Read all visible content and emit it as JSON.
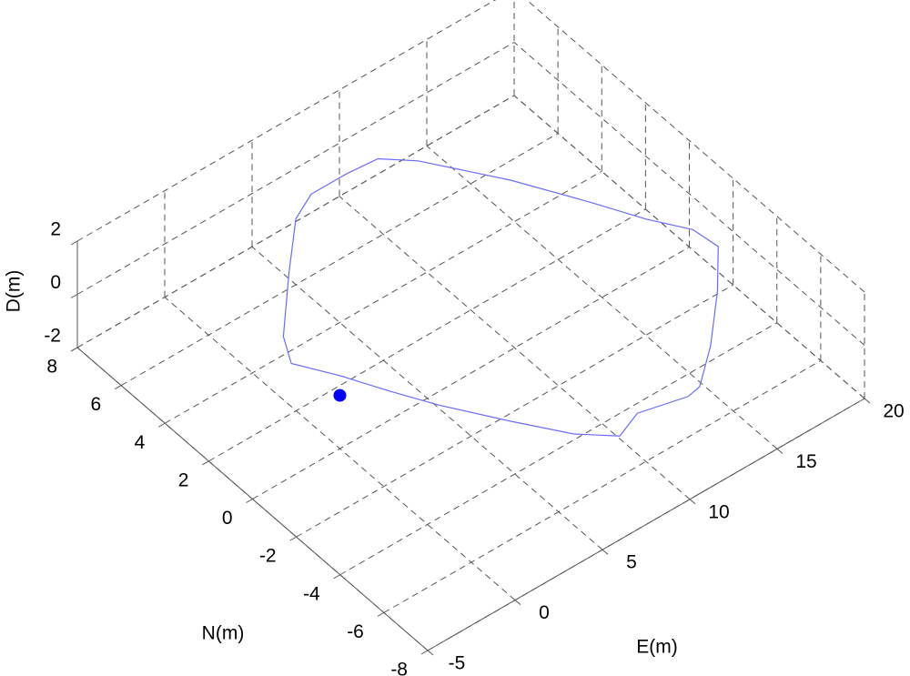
{
  "chart_data": {
    "type": "line3d",
    "xlabel": "E(m)",
    "ylabel": "N(m)",
    "zlabel": "D(m)",
    "xlim": [
      -5,
      20
    ],
    "ylim": [
      -8,
      8
    ],
    "zlim": [
      -2,
      2
    ],
    "xticks": [
      -5,
      0,
      5,
      10,
      15,
      20
    ],
    "yticks": [
      -8,
      -6,
      -4,
      -2,
      0,
      2,
      4,
      6,
      8
    ],
    "zticks": [
      -2,
      0,
      2
    ],
    "grid": true,
    "series": [
      {
        "color": "#6b6bff",
        "x": [
          0.9,
          -0.4,
          0.4,
          3.1,
          5.5,
          7.0,
          9.0,
          10.7,
          12.0,
          14.4,
          16.3,
          17.5,
          18.7,
          18.9,
          17.1,
          14.7,
          12.7,
          11.9,
          9.5,
          8.0,
          6.5,
          4.8,
          3.0,
          1.9,
          0.8
        ],
        "y": [
          0.5,
          1.9,
          2.9,
          4.8,
          6.4,
          6.9,
          6.9,
          6.8,
          6.0,
          3.7,
          1.5,
          0.0,
          -1.2,
          -2.2,
          -3.6,
          -5.2,
          -6.3,
          -6.4,
          -6.0,
          -6.4,
          -5.5,
          -3.9,
          -2.1,
          -0.8,
          0.6
        ],
        "z": [
          0,
          0,
          0,
          0,
          0,
          0,
          0,
          0,
          0,
          0,
          0,
          0,
          0,
          0,
          0,
          0,
          0,
          0,
          0,
          0,
          0,
          0,
          0,
          0,
          0
        ]
      }
    ],
    "marker": {
      "x": 0,
      "y": 0,
      "z": 0,
      "color": "#0000ff"
    }
  }
}
